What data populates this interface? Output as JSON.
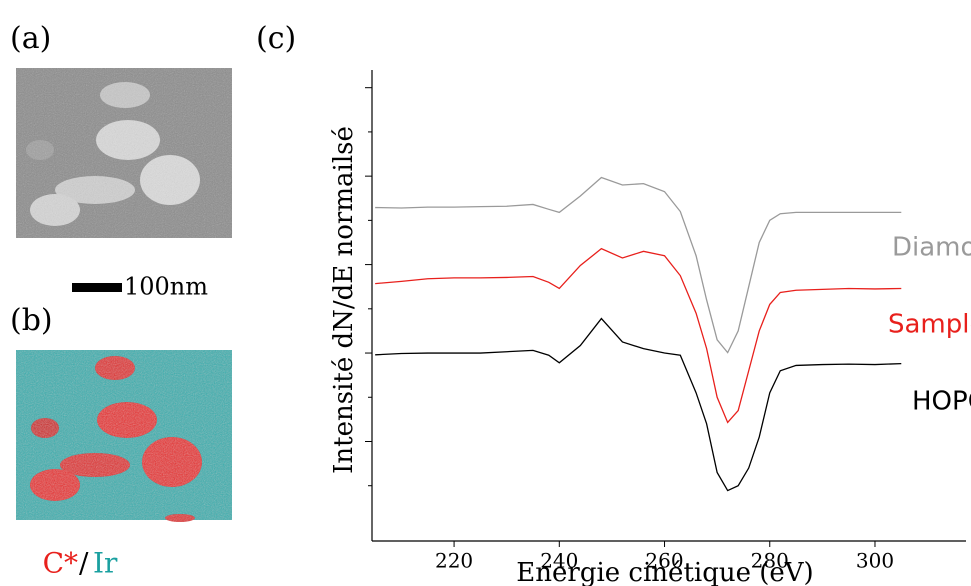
{
  "labels": {
    "a": "(a)",
    "b": "(b)",
    "c": "(c)"
  },
  "scale_bar": "100nm",
  "map_legend": {
    "carbon": "C*",
    "separator": "/",
    "iridium": "Ir"
  },
  "chart_data": {
    "type": "line",
    "xlabel": "Energie cinétique (eV)",
    "ylabel": "Intensité dN/dE normailsé",
    "x": [
      205,
      210,
      215,
      220,
      225,
      230,
      235,
      238,
      240,
      244,
      248,
      252,
      256,
      260,
      263,
      266,
      268,
      270,
      272,
      274,
      276,
      278,
      280,
      282,
      285,
      290,
      295,
      300,
      305
    ],
    "series": [
      {
        "name": "Diamond",
        "color": "#9a9a9a",
        "values": [
          7.29,
          7.28,
          7.3,
          7.3,
          7.31,
          7.32,
          7.36,
          7.25,
          7.18,
          7.55,
          7.97,
          7.8,
          7.83,
          7.65,
          7.2,
          6.2,
          5.2,
          4.3,
          4.01,
          4.5,
          5.5,
          6.5,
          7.0,
          7.15,
          7.18,
          7.18,
          7.18,
          7.18,
          7.18
        ]
      },
      {
        "name": "Sample",
        "color": "#e8201c",
        "values": [
          5.57,
          5.62,
          5.68,
          5.7,
          5.7,
          5.71,
          5.73,
          5.6,
          5.46,
          5.98,
          6.36,
          6.15,
          6.3,
          6.2,
          5.75,
          4.9,
          4.1,
          3.0,
          2.43,
          2.7,
          3.6,
          4.5,
          5.1,
          5.37,
          5.42,
          5.44,
          5.46,
          5.45,
          5.46
        ]
      },
      {
        "name": "HOPG",
        "color": "#000000",
        "values": [
          3.96,
          3.99,
          4.0,
          4.0,
          4.0,
          4.03,
          4.06,
          3.95,
          3.78,
          4.17,
          4.78,
          4.25,
          4.1,
          4.0,
          3.95,
          3.1,
          2.4,
          1.3,
          0.89,
          1.0,
          1.4,
          2.1,
          3.1,
          3.6,
          3.72,
          3.74,
          3.75,
          3.74,
          3.76
        ]
      }
    ],
    "xlim": [
      204.4,
      317.3
    ],
    "xticks": [
      220,
      240,
      260,
      280,
      300
    ],
    "ylim": [
      -0.25,
      10.4
    ],
    "yticks": [
      1,
      2,
      3,
      4,
      5,
      6,
      7,
      8,
      9,
      10
    ]
  }
}
